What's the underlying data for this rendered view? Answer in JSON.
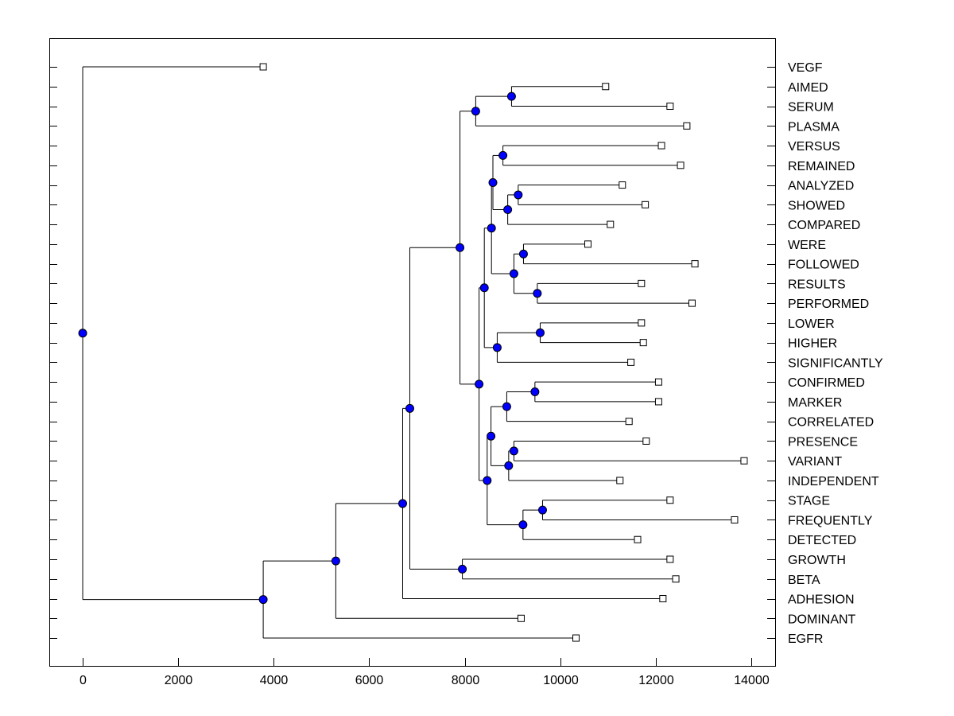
{
  "chart_data": {
    "type": "dendrogram",
    "title": "",
    "xlabel": "",
    "ylabel": "",
    "xlim": [
      -700,
      14500
    ],
    "xticks": [
      0,
      2000,
      4000,
      6000,
      8000,
      10000,
      12000,
      14000
    ],
    "xtick_labels": [
      "0",
      "2000",
      "4000",
      "6000",
      "8000",
      "10000",
      "12000",
      "14000"
    ],
    "leaves": [
      {
        "label": "VEGF",
        "value": 3780
      },
      {
        "label": "AIMED",
        "value": 10950
      },
      {
        "label": "SERUM",
        "value": 12300
      },
      {
        "label": "PLASMA",
        "value": 12650
      },
      {
        "label": "VERSUS",
        "value": 12120
      },
      {
        "label": "REMAINED",
        "value": 12520
      },
      {
        "label": "ANALYZED",
        "value": 11300
      },
      {
        "label": "SHOWED",
        "value": 11780
      },
      {
        "label": "COMPARED",
        "value": 11050
      },
      {
        "label": "WERE",
        "value": 10580
      },
      {
        "label": "FOLLOWED",
        "value": 12820
      },
      {
        "label": "RESULTS",
        "value": 11700
      },
      {
        "label": "PERFORMED",
        "value": 12760
      },
      {
        "label": "LOWER",
        "value": 11700
      },
      {
        "label": "HIGHER",
        "value": 11740
      },
      {
        "label": "SIGNIFICANTLY",
        "value": 11480
      },
      {
        "label": "CONFIRMED",
        "value": 12060
      },
      {
        "label": "MARKER",
        "value": 12060
      },
      {
        "label": "CORRELATED",
        "value": 11440
      },
      {
        "label": "PRESENCE",
        "value": 11800
      },
      {
        "label": "VARIANT",
        "value": 13850
      },
      {
        "label": "INDEPENDENT",
        "value": 11250
      },
      {
        "label": "STAGE",
        "value": 12300
      },
      {
        "label": "FREQUENTLY",
        "value": 13650
      },
      {
        "label": "DETECTED",
        "value": 11620
      },
      {
        "label": "GROWTH",
        "value": 12300
      },
      {
        "label": "BETA",
        "value": 12420
      },
      {
        "label": "ADHESION",
        "value": 12150
      },
      {
        "label": "DOMINANT",
        "value": 9180
      },
      {
        "label": "EGFR",
        "value": 10330
      }
    ],
    "merges": [
      {
        "id": "n1",
        "value": 8980,
        "children": [
          1,
          2
        ]
      },
      {
        "id": "n2",
        "value": 8230,
        "children": [
          "n1",
          3
        ]
      },
      {
        "id": "n3",
        "value": 8800,
        "children": [
          4,
          5
        ]
      },
      {
        "id": "n4",
        "value": 9120,
        "children": [
          6,
          7
        ]
      },
      {
        "id": "n5",
        "value": 8900,
        "children": [
          "n4",
          8
        ]
      },
      {
        "id": "n6",
        "value": 8590,
        "children": [
          "n3",
          "n5"
        ]
      },
      {
        "id": "n7",
        "value": 9230,
        "children": [
          9,
          10
        ]
      },
      {
        "id": "n8",
        "value": 9520,
        "children": [
          11,
          12
        ]
      },
      {
        "id": "n9",
        "value": 9030,
        "children": [
          "n7",
          "n8"
        ]
      },
      {
        "id": "n10",
        "value": 8560,
        "children": [
          "n6",
          "n9"
        ]
      },
      {
        "id": "n11",
        "value": 9580,
        "children": [
          13,
          14
        ]
      },
      {
        "id": "n12",
        "value": 8680,
        "children": [
          "n11",
          15
        ]
      },
      {
        "id": "n13",
        "value": 8410,
        "children": [
          "n10",
          "n12"
        ]
      },
      {
        "id": "n14",
        "value": 9470,
        "children": [
          16,
          17
        ]
      },
      {
        "id": "n15",
        "value": 8880,
        "children": [
          "n14",
          18
        ]
      },
      {
        "id": "n16",
        "value": 9030,
        "children": [
          19,
          20
        ]
      },
      {
        "id": "n17",
        "value": 8920,
        "children": [
          "n16",
          21
        ]
      },
      {
        "id": "n18",
        "value": 8550,
        "children": [
          "n15",
          "n17"
        ]
      },
      {
        "id": "n19",
        "value": 9630,
        "children": [
          22,
          23
        ]
      },
      {
        "id": "n20",
        "value": 9220,
        "children": [
          "n19",
          24
        ]
      },
      {
        "id": "n21",
        "value": 8470,
        "children": [
          "n18",
          "n20"
        ]
      },
      {
        "id": "n22",
        "value": 8300,
        "children": [
          "n13",
          "n21"
        ]
      },
      {
        "id": "n23",
        "value": 7900,
        "children": [
          "n2",
          "n22"
        ]
      },
      {
        "id": "n24",
        "value": 7950,
        "children": [
          25,
          26
        ]
      },
      {
        "id": "n25",
        "value": 6850,
        "children": [
          "n23",
          "n24"
        ]
      },
      {
        "id": "n26",
        "value": 6700,
        "children": [
          "n25",
          27
        ]
      },
      {
        "id": "n27",
        "value": 5300,
        "children": [
          "n26",
          28
        ]
      },
      {
        "id": "n28",
        "value": 3780,
        "children": [
          "n27",
          29
        ]
      },
      {
        "id": "n29",
        "value": 0,
        "children": [
          0,
          "n28"
        ]
      }
    ],
    "colors": {
      "node_fill": "#0000ff",
      "node_stroke": "#000000",
      "line": "#000000",
      "leaf_fill": "#ffffff"
    }
  }
}
